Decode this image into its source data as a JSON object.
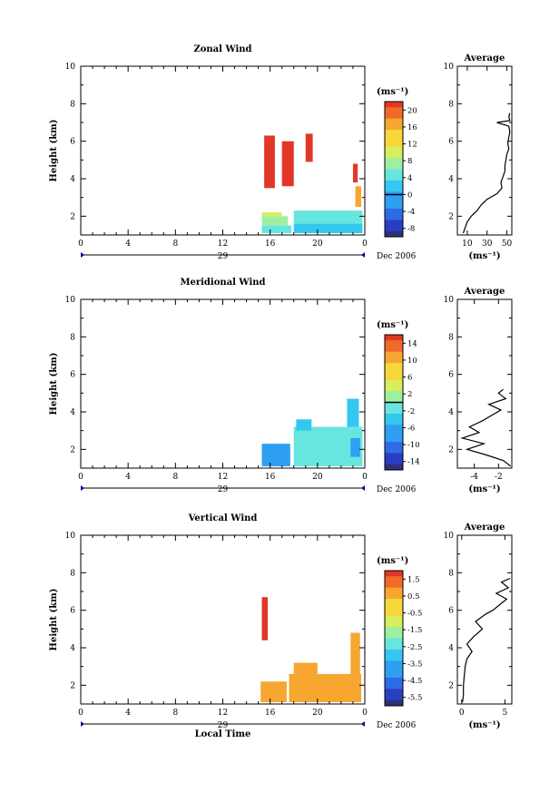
{
  "figure": {
    "x_label": "Local Time",
    "x_ticks": [
      "0",
      "4",
      "8",
      "12",
      "16",
      "20",
      "0"
    ],
    "date_day": "29",
    "date_month": "Dec 2006",
    "y_label": "Height (km)",
    "y_ticks": [
      "2",
      "4",
      "6",
      "8",
      "10"
    ]
  },
  "chart_data": [
    {
      "type": "heatmap",
      "title": "Zonal Wind",
      "ylabel": "Height (km)",
      "xlabel": "",
      "xlim": [
        0,
        24
      ],
      "ylim": [
        1,
        10
      ],
      "colorbar": {
        "unit": "(ms⁻¹)",
        "ticks": [
          "20",
          "16",
          "12",
          "8",
          "4",
          "0",
          "-4",
          "-8"
        ],
        "range": [
          -10,
          22
        ],
        "zero_line": 0
      },
      "regions": [
        {
          "t0": 15.5,
          "t1": 16.4,
          "h0": 3.5,
          "h1": 6.3,
          "value": 21
        },
        {
          "t0": 17.0,
          "t1": 18.0,
          "h0": 3.6,
          "h1": 6.0,
          "value": 21
        },
        {
          "t0": 19.0,
          "t1": 19.6,
          "h0": 4.9,
          "h1": 6.4,
          "value": 21
        },
        {
          "t0": 23.0,
          "t1": 23.4,
          "h0": 3.8,
          "h1": 4.8,
          "value": 21
        },
        {
          "t0": 23.2,
          "t1": 23.7,
          "h0": 2.5,
          "h1": 3.6,
          "value": 16
        },
        {
          "t0": 15.3,
          "t1": 17.0,
          "h0": 2.0,
          "h1": 2.2,
          "value": 9
        },
        {
          "t0": 15.3,
          "t1": 17.5,
          "h0": 1.5,
          "h1": 2.0,
          "value": 6
        },
        {
          "t0": 15.3,
          "t1": 17.8,
          "h0": 1.1,
          "h1": 1.5,
          "value": 4
        },
        {
          "t0": 18.0,
          "t1": 23.8,
          "h0": 1.6,
          "h1": 2.3,
          "value": 5
        },
        {
          "t0": 18.0,
          "t1": 23.8,
          "h0": 1.1,
          "h1": 1.6,
          "value": 3
        }
      ],
      "profile": {
        "title": "Average",
        "xlabel": "(ms⁻¹)",
        "xticks": [
          "10",
          "30",
          "50"
        ],
        "xlim": [
          0,
          55
        ],
        "yticks": [
          "2",
          "4",
          "6",
          "8",
          "10"
        ],
        "height": [
          1.1,
          1.4,
          1.7,
          2.0,
          2.3,
          2.6,
          2.9,
          3.2,
          3.5,
          3.8,
          4.1,
          4.4,
          4.7,
          5.0,
          5.3,
          5.6,
          5.9,
          6.2,
          6.5,
          6.8,
          7.0,
          7.1,
          7.3,
          7.5
        ],
        "speed": [
          6,
          8,
          10,
          14,
          20,
          24,
          30,
          40,
          45,
          44,
          46,
          48,
          48,
          49,
          50,
          52,
          51,
          52,
          53,
          52,
          40,
          53,
          52,
          53
        ]
      }
    },
    {
      "type": "heatmap",
      "title": "Meridional Wind",
      "ylabel": "Height (km)",
      "xlabel": "",
      "xlim": [
        0,
        24
      ],
      "ylim": [
        1,
        10
      ],
      "colorbar": {
        "unit": "(ms⁻¹)",
        "ticks": [
          "14",
          "10",
          "6",
          "2",
          "-2",
          "-6",
          "-10",
          "-14"
        ],
        "range": [
          -16,
          16
        ],
        "zero_line": 0
      },
      "regions": [
        {
          "t0": 15.3,
          "t1": 17.7,
          "h0": 1.1,
          "h1": 2.3,
          "value": -8
        },
        {
          "t0": 18.0,
          "t1": 23.8,
          "h0": 1.1,
          "h1": 3.2,
          "value": -2
        },
        {
          "t0": 18.2,
          "t1": 19.5,
          "h0": 3.0,
          "h1": 3.6,
          "value": -5
        },
        {
          "t0": 22.5,
          "t1": 23.5,
          "h0": 3.2,
          "h1": 4.7,
          "value": -3
        },
        {
          "t0": 22.8,
          "t1": 23.6,
          "h0": 1.6,
          "h1": 2.6,
          "value": -7
        }
      ],
      "profile": {
        "title": "Average",
        "xlabel": "(ms⁻¹)",
        "xticks": [
          "-4",
          "-2"
        ],
        "xlim": [
          -5.4,
          -0.9
        ],
        "yticks": [
          "2",
          "4",
          "6",
          "8",
          "10"
        ],
        "height": [
          1.1,
          1.4,
          1.7,
          2.0,
          2.3,
          2.6,
          2.9,
          3.2,
          3.5,
          3.8,
          4.1,
          4.4,
          4.7,
          5.0,
          5.2
        ],
        "speed": [
          -1.0,
          -1.6,
          -3.0,
          -4.6,
          -3.2,
          -5.0,
          -3.6,
          -4.4,
          -3.4,
          -2.6,
          -1.8,
          -2.8,
          -1.4,
          -2.0,
          -1.6
        ]
      }
    },
    {
      "type": "heatmap",
      "title": "Vertical Wind",
      "ylabel": "Height (km)",
      "xlabel": "Local Time",
      "xlim": [
        0,
        24
      ],
      "ylim": [
        1,
        10
      ],
      "colorbar": {
        "unit": "(ms⁻¹)",
        "ticks": [
          "1.5",
          "0.5",
          "-0.5",
          "-1.5",
          "-2.5",
          "-3.5",
          "-4.5",
          "-5.5"
        ],
        "range": [
          -6.5,
          2.2
        ],
        "zero_line": null
      },
      "regions": [
        {
          "t0": 15.3,
          "t1": 15.8,
          "h0": 4.4,
          "h1": 6.7,
          "value": 2.0
        },
        {
          "t0": 15.2,
          "t1": 17.4,
          "h0": 1.1,
          "h1": 2.2,
          "value": 0.6
        },
        {
          "t0": 17.6,
          "t1": 23.7,
          "h0": 1.1,
          "h1": 2.6,
          "value": 0.7
        },
        {
          "t0": 18.0,
          "t1": 20.0,
          "h0": 2.6,
          "h1": 3.2,
          "value": 0.8
        },
        {
          "t0": 22.8,
          "t1": 23.6,
          "h0": 2.4,
          "h1": 4.8,
          "value": 0.7
        }
      ],
      "profile": {
        "title": "Average",
        "xlabel": "(ms⁻¹)",
        "xticks": [
          "0",
          "5"
        ],
        "xlim": [
          -0.5,
          5.8
        ],
        "yticks": [
          "2",
          "4",
          "6",
          "8",
          "10"
        ],
        "height": [
          1.1,
          1.5,
          2.0,
          2.5,
          3.0,
          3.4,
          3.8,
          4.2,
          4.6,
          5.0,
          5.4,
          5.8,
          6.0,
          6.3,
          6.6,
          6.9,
          7.2,
          7.5,
          7.7
        ],
        "speed": [
          0.1,
          0.2,
          0.2,
          0.3,
          0.4,
          0.6,
          1.2,
          0.6,
          1.4,
          2.4,
          1.6,
          2.8,
          3.6,
          4.4,
          5.2,
          4.0,
          5.4,
          4.6,
          5.6
        ]
      }
    }
  ]
}
